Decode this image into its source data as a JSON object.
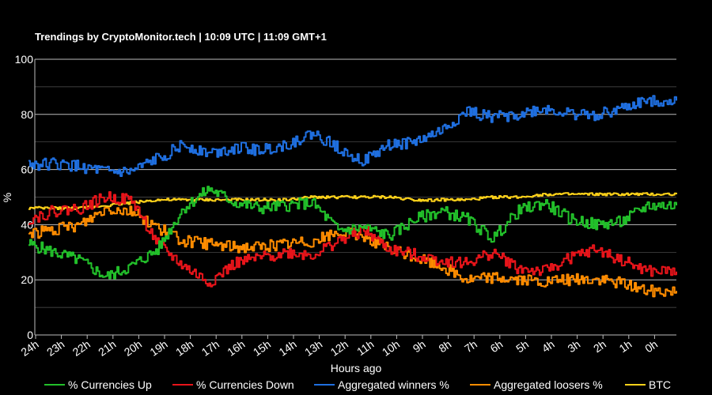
{
  "chart_data": {
    "type": "line",
    "title": "Trendings by CryptoMonitor.tech | 10:09 UTC | 11:09 GMT+1",
    "xlabel": "Hours ago",
    "ylabel": "%",
    "ylim": [
      0,
      100
    ],
    "yticks": [
      0,
      20,
      40,
      60,
      80,
      100
    ],
    "grid": true,
    "legend_position": "bottom",
    "x": [
      "24h",
      "23h",
      "22h",
      "21h",
      "20h",
      "19h",
      "18h",
      "17h",
      "16h",
      "15h",
      "14h",
      "13h",
      "12h",
      "11h",
      "10h",
      "9h",
      "8h",
      "7h",
      "6h",
      "5h",
      "4h",
      "3h",
      "2h",
      "1h",
      "0h"
    ],
    "series": [
      {
        "name": "% Currencies Up",
        "color": "#22c02a",
        "values": [
          33,
          30,
          27,
          21,
          25,
          31,
          46,
          53,
          48,
          46,
          47,
          48,
          38,
          39,
          36,
          42,
          45,
          42,
          35,
          45,
          48,
          42,
          40,
          41,
          47
        ]
      },
      {
        "name": "% Currencies Down",
        "color": "#e8141a",
        "values": [
          42,
          45,
          46,
          50,
          49,
          33,
          25,
          19,
          26,
          28,
          30,
          29,
          34,
          38,
          31,
          29,
          27,
          26,
          30,
          24,
          23,
          28,
          31,
          27,
          23
        ]
      },
      {
        "name": "Aggregated winners %",
        "color": "#1f6fe0",
        "values": [
          62,
          62,
          61,
          59,
          59,
          64,
          69,
          66,
          68,
          67,
          69,
          73,
          68,
          63,
          69,
          70,
          74,
          81,
          79,
          80,
          82,
          80,
          80,
          82,
          85
        ]
      },
      {
        "name": "Aggregated loosers %",
        "color": "#ff8c00",
        "values": [
          37,
          38,
          40,
          46,
          45,
          39,
          34,
          33,
          32,
          32,
          33,
          34,
          37,
          36,
          31,
          28,
          25,
          20,
          21,
          20,
          19,
          20,
          20,
          19,
          16
        ]
      },
      {
        "name": "BTC",
        "color": "#ffd21a",
        "values": [
          46,
          46,
          46,
          47,
          48,
          49,
          49,
          49,
          49,
          49,
          49,
          50,
          50,
          50,
          50,
          49,
          49,
          49,
          50,
          50,
          51,
          51,
          51,
          51,
          51
        ]
      }
    ]
  }
}
